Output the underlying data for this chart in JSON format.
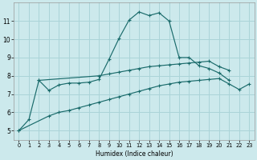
{
  "bg_color": "#cce9ec",
  "grid_color": "#aad4d8",
  "line_color": "#1a6b6b",
  "xlabel": "Humidex (Indice chaleur)",
  "xlim": [
    -0.5,
    23.5
  ],
  "ylim": [
    4.5,
    12.0
  ],
  "xticks": [
    0,
    1,
    2,
    3,
    4,
    5,
    6,
    7,
    8,
    9,
    10,
    11,
    12,
    13,
    14,
    15,
    16,
    17,
    18,
    19,
    20,
    21,
    22,
    23
  ],
  "yticks": [
    5,
    6,
    7,
    8,
    9,
    10,
    11
  ],
  "series1_x": [
    0,
    1,
    2,
    3,
    4,
    5,
    6,
    7,
    8,
    9,
    10,
    11,
    12,
    13,
    14,
    15,
    16,
    17,
    18,
    19,
    20,
    21
  ],
  "series1_y": [
    5.0,
    5.6,
    7.75,
    7.2,
    7.5,
    7.6,
    7.6,
    7.65,
    7.8,
    8.9,
    10.05,
    11.05,
    11.5,
    11.3,
    11.45,
    11.0,
    9.0,
    9.0,
    8.55,
    8.4,
    8.15,
    7.75
  ],
  "series2_x": [
    2,
    8,
    9,
    10,
    11,
    12,
    13,
    14,
    15,
    16,
    17,
    18,
    19,
    20,
    21
  ],
  "series2_y": [
    7.75,
    8.0,
    8.1,
    8.2,
    8.3,
    8.4,
    8.5,
    8.55,
    8.6,
    8.65,
    8.7,
    8.75,
    8.8,
    8.5,
    8.3
  ],
  "series3_x": [
    0,
    3,
    4,
    5,
    6,
    7,
    8,
    9,
    10,
    11,
    12,
    13,
    14,
    15,
    16,
    17,
    18,
    19,
    20,
    21,
    22,
    23
  ],
  "series3_y": [
    5.0,
    5.8,
    6.0,
    6.1,
    6.25,
    6.4,
    6.55,
    6.7,
    6.85,
    7.0,
    7.15,
    7.3,
    7.45,
    7.55,
    7.65,
    7.7,
    7.75,
    7.8,
    7.85,
    7.55,
    7.25,
    7.55
  ]
}
